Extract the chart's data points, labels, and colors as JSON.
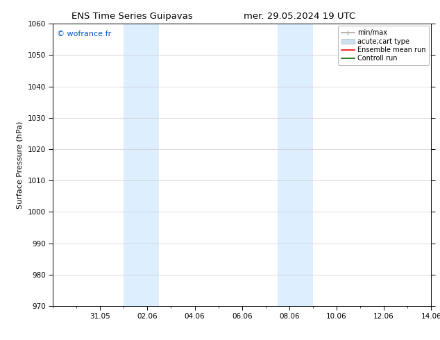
{
  "title_left": "ENS Time Series Guipavas",
  "title_right": "mer. 29.05.2024 19 UTC",
  "ylabel": "Surface Pressure (hPa)",
  "ylim": [
    970,
    1060
  ],
  "yticks": [
    970,
    980,
    990,
    1000,
    1010,
    1020,
    1030,
    1040,
    1050,
    1060
  ],
  "xtick_labels": [
    "31.05",
    "02.06",
    "04.06",
    "06.06",
    "08.06",
    "10.06",
    "12.06",
    "14.06"
  ],
  "xtick_positions": [
    2,
    4,
    6,
    8,
    10,
    12,
    14,
    16
  ],
  "xlim": [
    0,
    16
  ],
  "shaded_regions": [
    {
      "xstart": 3.0,
      "xend": 4.5
    },
    {
      "xstart": 9.5,
      "xend": 11.0
    }
  ],
  "shaded_color": "#ddeeff",
  "watermark": "© wofrance.fr",
  "watermark_color": "#0055cc",
  "legend_labels": [
    "min/max",
    "acute;cart type",
    "Ensemble mean run",
    "Controll run"
  ],
  "legend_colors_line": [
    "#aaaaaa",
    "#bbccdd",
    "#ff0000",
    "#006600"
  ],
  "background_color": "#ffffff",
  "title_fontsize": 9.5,
  "tick_fontsize": 7.5,
  "ylabel_fontsize": 8,
  "watermark_fontsize": 8,
  "legend_fontsize": 7
}
